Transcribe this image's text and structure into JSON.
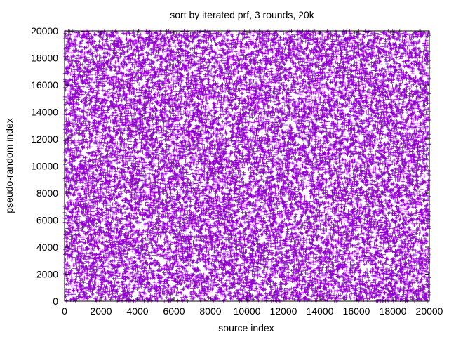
{
  "chart_data": {
    "type": "scatter",
    "title": "sort by iterated prf, 3 rounds, 20k",
    "xlabel": "source index",
    "ylabel": "pseudo-random index",
    "xlim": [
      0,
      20000
    ],
    "ylim": [
      0,
      20000
    ],
    "xticks": [
      0,
      2000,
      4000,
      6000,
      8000,
      10000,
      12000,
      14000,
      16000,
      18000,
      20000
    ],
    "yticks": [
      0,
      2000,
      4000,
      6000,
      8000,
      10000,
      12000,
      14000,
      16000,
      18000,
      20000
    ],
    "grid": false,
    "legend": "none",
    "marker": "plus",
    "point_count": 20000,
    "distribution": "pseudo-random permutation of source index 0-19999",
    "series": [
      {
        "color": "#9400d3"
      }
    ]
  }
}
